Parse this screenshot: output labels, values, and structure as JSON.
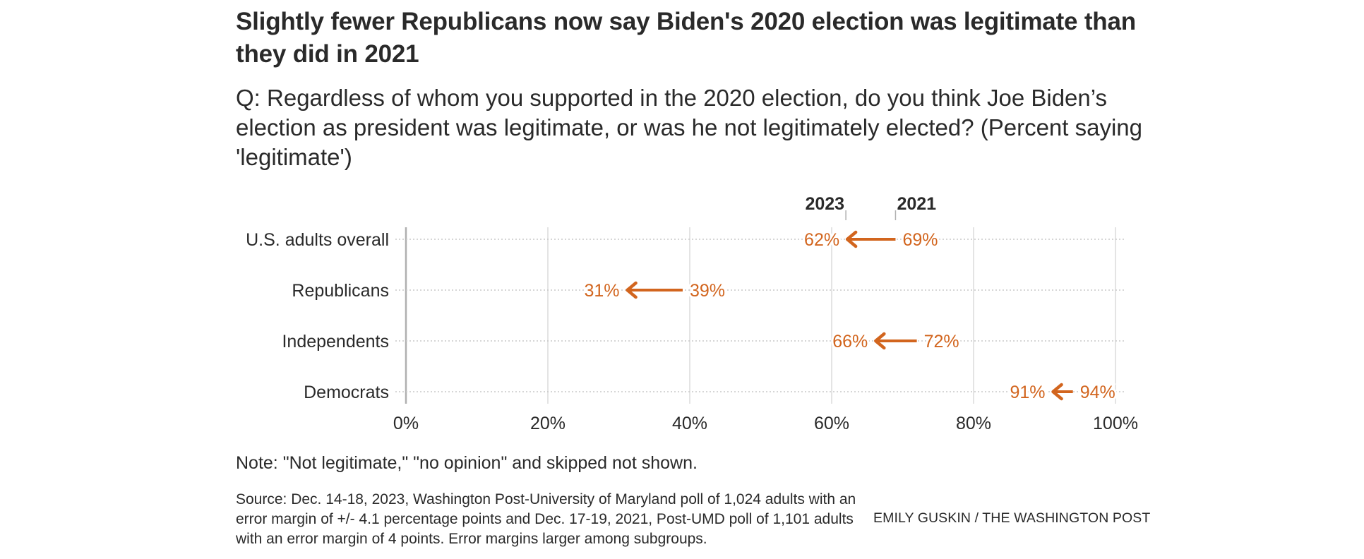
{
  "title": "Slightly fewer Republicans now say Biden's 2020 election was legitimate than they did in 2021",
  "subtitle": "Q: Regardless of whom you supported in the 2020 election, do you think Joe Biden’s election as president was legitimate, or was he not legitimately elected? (Percent saying 'legitimate')",
  "note": "Note: \"Not legitimate,\" \"no opinion\" and skipped not shown.",
  "source": "Source: Dec. 14-18, 2023, Washington Post-University of Maryland poll of 1,024 adults with an error margin of +/- 4.1 percentage points and Dec. 17-19, 2021, Post-UMD poll of 1,101 adults with an error margin of 4 points. Error margins larger among subgroups.",
  "credit": "EMILY GUSKIN / THE WASHINGTON POST",
  "colors": {
    "accent": "#d2651e",
    "text": "#2a2a2a",
    "grid": "#dddddd",
    "axis": "#b0b0b0"
  },
  "chart_data": {
    "type": "arrow-dot",
    "title": "Slightly fewer Republicans now say Biden's 2020 election was legitimate than they did in 2021",
    "xlabel": "",
    "ylabel": "",
    "xlim": [
      0,
      100
    ],
    "x_ticks": [
      0,
      20,
      40,
      60,
      80,
      100
    ],
    "x_tick_labels": [
      "0%",
      "20%",
      "40%",
      "60%",
      "80%",
      "100%"
    ],
    "grid": true,
    "legend": {
      "from_label": "2021",
      "to_label": "2023",
      "placement": "top, above first row"
    },
    "categories": [
      "U.S. adults overall",
      "Republicans",
      "Independents",
      "Democrats"
    ],
    "series": [
      {
        "name": "2021",
        "values": [
          69,
          39,
          72,
          94
        ]
      },
      {
        "name": "2023",
        "values": [
          62,
          31,
          66,
          91
        ]
      }
    ],
    "value_labels": {
      "2021": [
        "69%",
        "39%",
        "72%",
        "94%"
      ],
      "2023": [
        "62%",
        "31%",
        "66%",
        "91%"
      ]
    }
  }
}
